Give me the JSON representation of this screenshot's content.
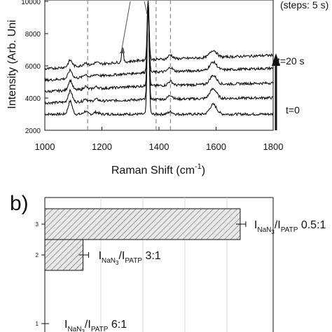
{
  "chart_data": [
    {
      "type": "line",
      "xlabel": "Raman Shift (cm-1)",
      "xlabel_main": "Raman Shift (cm",
      "xlabel_sup": "-1",
      "xlabel_end": ")",
      "ylabel": "Intensity (Arb. Uni",
      "xlim": [
        1000,
        1800
      ],
      "ylim": [
        2000,
        10000
      ],
      "xticks": [
        "1000",
        "1200",
        "1400",
        "1600",
        "1800"
      ],
      "yticks": [
        "2000",
        "4000",
        "6000",
        "8000",
        "10000"
      ],
      "dashed_lines_x": [
        1150,
        1390,
        1440
      ],
      "annotations": {
        "steps": "(steps: 5 s)",
        "t_end": "t=20 s",
        "t_start": "t=0"
      },
      "series": [
        {
          "baseline": 3000,
          "slope": 0.0,
          "peak1089": 800,
          "peak1360": 6800,
          "peak1590": 600,
          "peak1440": 150
        },
        {
          "baseline": 3700,
          "slope": 0.6,
          "peak1089": 700,
          "peak1360": 6000,
          "peak1590": 600,
          "peak1440": 250
        },
        {
          "baseline": 4400,
          "slope": 1.0,
          "peak1089": 600,
          "peak1360": 5200,
          "peak1590": 550,
          "peak1440": 250
        },
        {
          "baseline": 5100,
          "slope": 1.4,
          "peak1089": 500,
          "peak1360": 4400,
          "peak1590": 500,
          "peak1440": 250
        },
        {
          "baseline": 5800,
          "slope": 1.6,
          "peak1089": 400,
          "peak1360": 3800,
          "peak1590": 450,
          "peak1440": 250
        }
      ]
    },
    {
      "type": "bar",
      "orientation": "horizontal",
      "panel_label": "b)",
      "categories": [
        "1",
        "2",
        "3"
      ],
      "values": [
        0.01,
        0.18,
        0.92
      ],
      "xlim": [
        0,
        1
      ],
      "bar_labels": [
        {
          "main": "I",
          "sub1": "NaN",
          "sub1b": "3",
          "slash": "/I",
          "sub2": "PATP",
          "ratio": "6:1"
        },
        {
          "main": "I",
          "sub1": "NaN",
          "sub1b": "3",
          "slash": "/I",
          "sub2": "PATP",
          "ratio": "3:1"
        },
        {
          "main": "I",
          "sub1": "NaN",
          "sub1b": "3",
          "slash": "/I",
          "sub2": "PATP",
          "ratio": "0.5:1"
        }
      ]
    }
  ]
}
